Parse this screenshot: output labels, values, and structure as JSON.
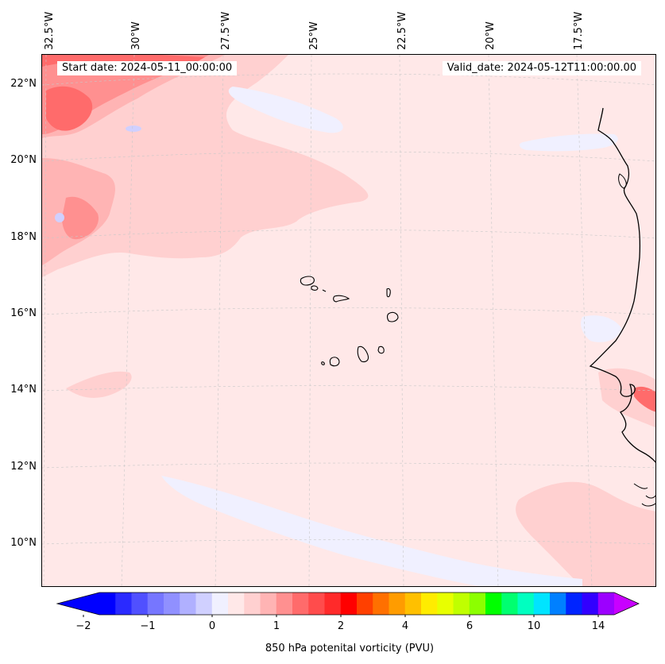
{
  "map": {
    "start_date": "Start date: 2024-05-11_00:00:00",
    "valid_date": "Valid_date: 2024-05-12T11:00:00.00",
    "lon_labels": [
      "32.5°W",
      "30°W",
      "27.5°W",
      "25°W",
      "22.5°W",
      "20°W",
      "17.5°W"
    ],
    "lat_labels": [
      "22°N",
      "20°N",
      "18°N",
      "16°N",
      "14°N",
      "12°N",
      "10°N"
    ],
    "colors": {
      "background": "#ffe8e8",
      "light_pink": "#ffd0d0",
      "pink": "#ffb4b4",
      "salmon": "#ff9090",
      "red": "#ff6b6b",
      "lavender": "#f0f0ff",
      "coast": "#000000"
    }
  },
  "colorbar": {
    "title": "850 hPa potenital vorticity (PVU)",
    "tick_labels": [
      "−2",
      "−1",
      "0",
      "1",
      "2",
      "4",
      "6",
      "10",
      "14"
    ],
    "colors": [
      "#0000ff",
      "#2a2aff",
      "#5050ff",
      "#7676ff",
      "#9090ff",
      "#b0b0ff",
      "#d0d0ff",
      "#f0f0ff",
      "#ffe8e8",
      "#ffd0d0",
      "#ffb4b4",
      "#ff9090",
      "#ff6b6b",
      "#ff4c4c",
      "#ff2a2a",
      "#ff0000",
      "#ff4000",
      "#ff7000",
      "#ff9c00",
      "#ffc000",
      "#ffec00",
      "#e8ff00",
      "#c0ff00",
      "#8cff00",
      "#00ff00",
      "#00ff70",
      "#00ffc0",
      "#00e4ff",
      "#0080ff",
      "#0024ff",
      "#3200ff",
      "#9c00ff"
    ],
    "extend_min_color": "#0000ff",
    "extend_max_color": "#c800ff"
  }
}
